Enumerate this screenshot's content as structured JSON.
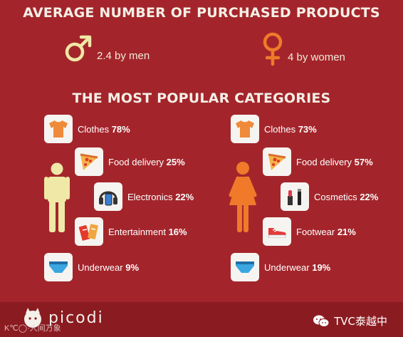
{
  "title": "AVERAGE NUMBER OF PURCHASED PRODUCTS",
  "men": {
    "icon": "male-symbol-icon",
    "value": "2.4",
    "text": "by men"
  },
  "women": {
    "icon": "female-symbol-icon",
    "value": "4",
    "text": "by women"
  },
  "subtitle": "THE MOST POPULAR CATEGORIES",
  "men_categories": [
    {
      "icon": "tshirt-icon",
      "label": "Clothes",
      "pct": "78%"
    },
    {
      "icon": "pizza-slice-icon",
      "label": "Food delivery",
      "pct": "25%"
    },
    {
      "icon": "headphones-phone-icon",
      "label": "Electronics",
      "pct": "22%"
    },
    {
      "icon": "tickets-icon",
      "label": "Entertainment",
      "pct": "16%"
    },
    {
      "icon": "underwear-icon",
      "label": "Underwear",
      "pct": "9%"
    }
  ],
  "women_categories": [
    {
      "icon": "tshirt-icon",
      "label": "Clothes",
      "pct": "73%"
    },
    {
      "icon": "pizza-slice-icon",
      "label": "Food delivery",
      "pct": "57%"
    },
    {
      "icon": "cosmetics-icon",
      "label": "Cosmetics",
      "pct": "22%"
    },
    {
      "icon": "sneaker-icon",
      "label": "Footwear",
      "pct": "21%"
    },
    {
      "icon": "underwear-icon",
      "label": "Underwear",
      "pct": "19%"
    }
  ],
  "footer": {
    "brand": "picodi",
    "watermark": "K℃◯·人间万象",
    "account": "TVC泰越中",
    "account_icon": "wechat-icon"
  },
  "colors": {
    "background": "#a3252b",
    "footer": "#8a1b20",
    "male_figure": "#efe8a6",
    "female_figure": "#f07a2a",
    "tile": "#f6f4f1"
  }
}
